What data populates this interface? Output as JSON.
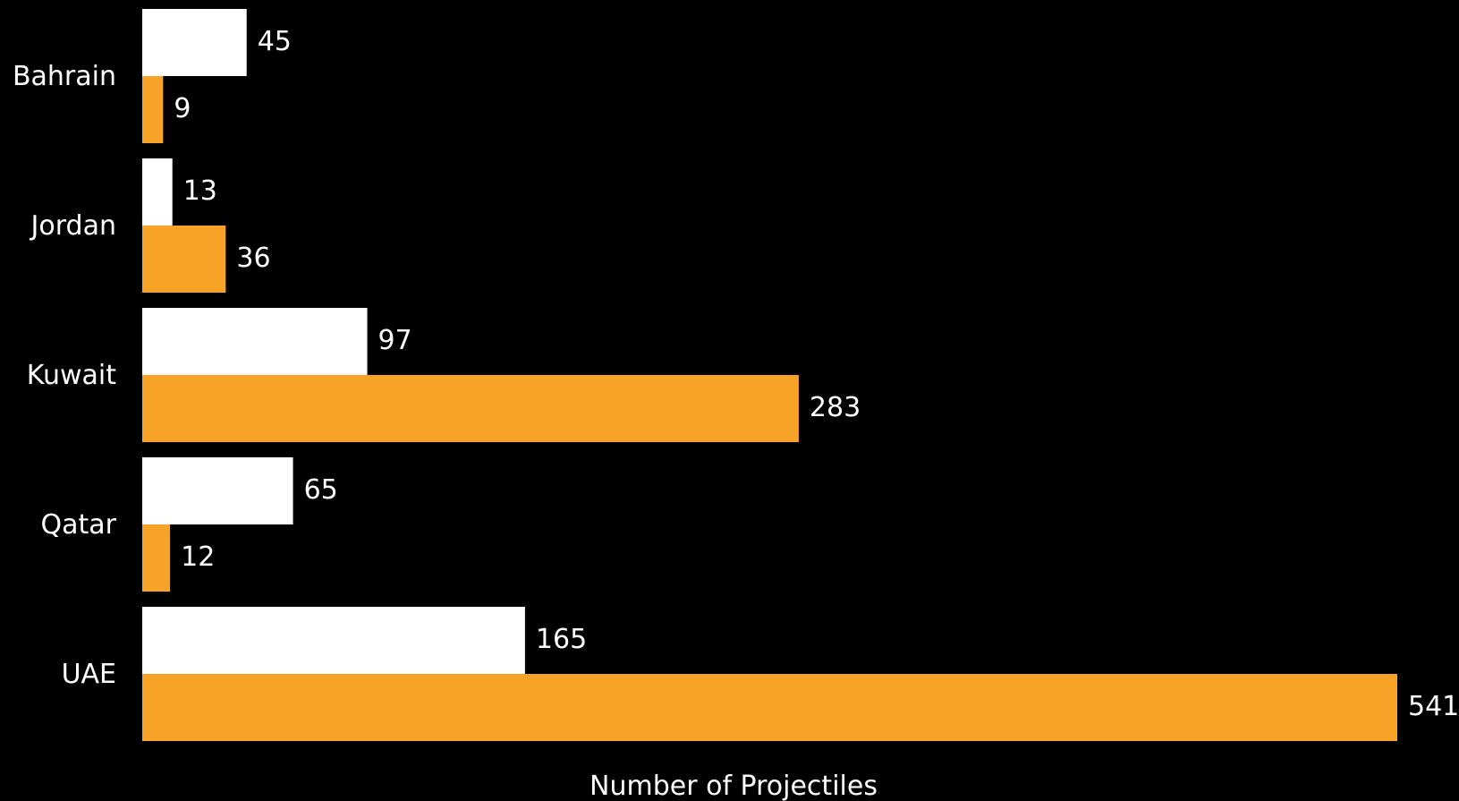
{
  "chart_data": {
    "type": "bar",
    "orientation": "horizontal",
    "categories": [
      "Bahrain",
      "Jordan",
      "Kuwait",
      "Qatar",
      "UAE"
    ],
    "series": [
      {
        "color": "#ffffff",
        "values": [
          45,
          13,
          97,
          65,
          165
        ]
      },
      {
        "color": "#f7a327",
        "values": [
          9,
          36,
          283,
          12,
          541
        ]
      }
    ],
    "xlabel": "Number of Projectiles",
    "ylabel": "",
    "xlim": [
      0,
      541
    ],
    "grid": false,
    "legend": "none",
    "background": "#000000"
  }
}
